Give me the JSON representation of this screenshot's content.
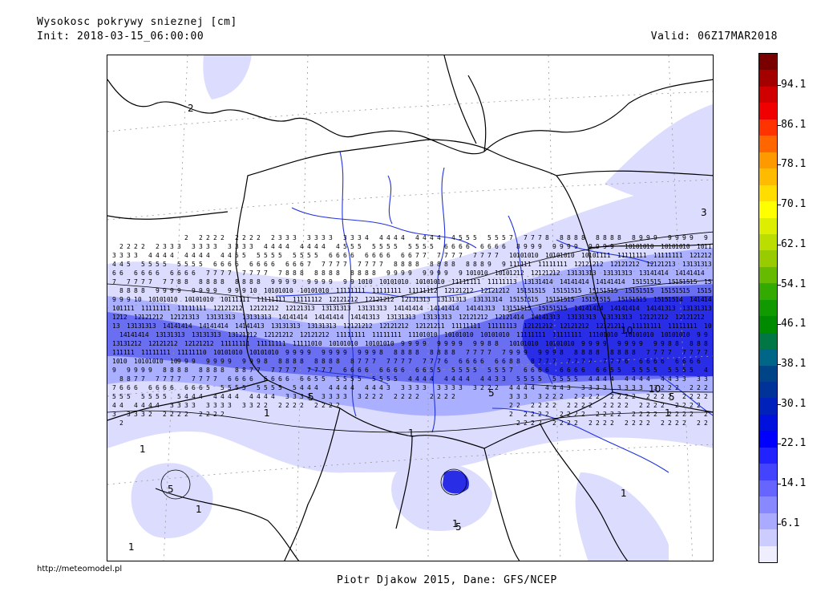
{
  "header": {
    "title": "Wysokosc pokrywy snieznej [cm]",
    "init": "Init: 2018-03-15_06:00:00",
    "valid": "Valid: 06Z17MAR2018"
  },
  "colorbar": {
    "labels": [
      "94.1",
      "86.1",
      "78.1",
      "70.1",
      "62.1",
      "54.1",
      "46.1",
      "38.1",
      "30.1",
      "22.1",
      "14.1",
      "6.1"
    ],
    "colors": [
      "#7a0000",
      "#a50000",
      "#d00000",
      "#f00000",
      "#ff3300",
      "#ff6600",
      "#ff9900",
      "#ffbb00",
      "#ffdd00",
      "#ffff00",
      "#ddee00",
      "#bbdd00",
      "#99cc00",
      "#66bb00",
      "#33aa00",
      "#119900",
      "#008a00",
      "#007744",
      "#006688",
      "#004488",
      "#003399",
      "#0022bb",
      "#0011dd",
      "#0000ff",
      "#2222ff",
      "#4444ff",
      "#6666ff",
      "#8888ff",
      "#aaaaff",
      "#ccccff",
      "#eeeeff"
    ]
  },
  "map": {
    "contour_labels": [
      "1",
      "1",
      "1",
      "1",
      "1",
      "1",
      "1",
      "1",
      "5",
      "5",
      "5",
      "5",
      "5",
      "10",
      "10",
      "3",
      "2",
      "2"
    ],
    "colors": {
      "light": "#dcdcff",
      "mid": "#aab0ff",
      "deep": "#6a6ef0",
      "peak": "#2a2de6",
      "river": "#2233dd",
      "border": "#000000"
    }
  },
  "footer": {
    "url": "http://meteomodel.pl",
    "credits": "Piotr Djakow 2015, Dane: GFS/NCEP"
  }
}
